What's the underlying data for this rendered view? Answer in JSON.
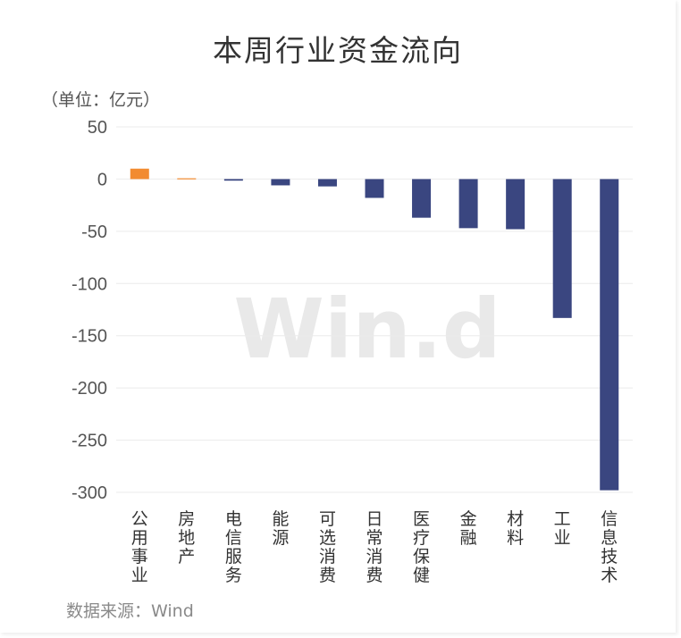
{
  "chart_data": {
    "type": "bar",
    "title": "本周行业资金流向",
    "unit_label": "（单位：亿元）",
    "source": "数据来源：Wind",
    "watermark": "Win.d",
    "categories": [
      "公用事业",
      "房地产",
      "电信服务",
      "能源",
      "可选消费",
      "日常消费",
      "医疗保健",
      "金融",
      "材料",
      "工业",
      "信息技术"
    ],
    "values": [
      10,
      0.8,
      -1.5,
      -6,
      -7,
      -18,
      -37,
      -47,
      -48,
      -133,
      -298
    ],
    "ylim": [
      -300,
      50
    ],
    "yticks": [
      "50",
      "0",
      "-50",
      "-100",
      "-150",
      "-200",
      "-250",
      "-300"
    ],
    "grid": true,
    "colors": {
      "positive": "#F28B30",
      "negative": "#3A4680",
      "grid": "#EBEBEB",
      "axis_text": "#555555"
    }
  }
}
